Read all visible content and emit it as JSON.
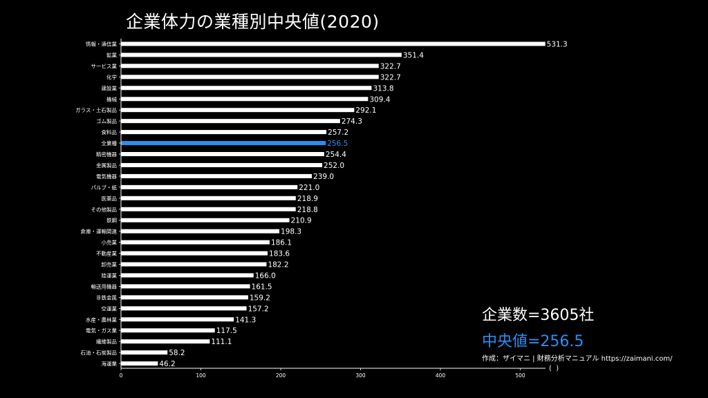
{
  "title": "企業体力の業種別中央値(2020)",
  "summary": {
    "company_count": "企業数=3605社",
    "median": "中央値=256.5"
  },
  "credit": {
    "line1": "作成：ザイマニ | 財務分析マニュアル https://zaimani.com/",
    "line2": "(  )"
  },
  "colors": {
    "bar": "#ffffff",
    "highlight": "#2b8ff0",
    "background": "#000000"
  },
  "chart_data": {
    "type": "bar",
    "orientation": "horizontal",
    "categories": [
      "情報・通信業",
      "鉱業",
      "サービス業",
      "化学",
      "建設業",
      "機械",
      "ガラス・土石製品",
      "ゴム製品",
      "食料品",
      "全業種",
      "精密機器",
      "金属製品",
      "電気機器",
      "パルプ・紙",
      "医薬品",
      "その他製品",
      "鉄鋼",
      "倉庫・運輸関連",
      "小売業",
      "不動産業",
      "卸売業",
      "陸運業",
      "輸送用機器",
      "非鉄金属",
      "空運業",
      "水産・農林業",
      "電気・ガス業",
      "繊維製品",
      "石油・石炭製品",
      "海運業"
    ],
    "values": [
      531.3,
      351.4,
      322.7,
      322.7,
      313.8,
      309.4,
      292.1,
      274.3,
      257.2,
      256.5,
      254.4,
      252.0,
      239.0,
      221.0,
      218.9,
      218.8,
      210.9,
      198.3,
      186.1,
      183.6,
      182.2,
      166.0,
      161.5,
      159.2,
      157.2,
      141.3,
      117.5,
      111.1,
      58.2,
      46.2
    ],
    "value_labels": [
      "531.3",
      "351.4",
      "322.7",
      "322.7",
      "313.8",
      "309.4",
      "292.1",
      "274.3",
      "257.2",
      "256.5",
      "254.4",
      "252.0",
      "239.0",
      "221.0",
      "218.9",
      "218.8",
      "210.9",
      "198.3",
      "186.1",
      "183.6",
      "182.2",
      "166.0",
      "161.5",
      "159.2",
      "157.2",
      "141.3",
      "117.5",
      "111.1",
      "58.2",
      "46.2"
    ],
    "highlight_category": "全業種",
    "xlim": [
      0,
      530
    ],
    "xticks": [
      0,
      100,
      200,
      300,
      400,
      500
    ],
    "grid": false,
    "legend": "none"
  }
}
